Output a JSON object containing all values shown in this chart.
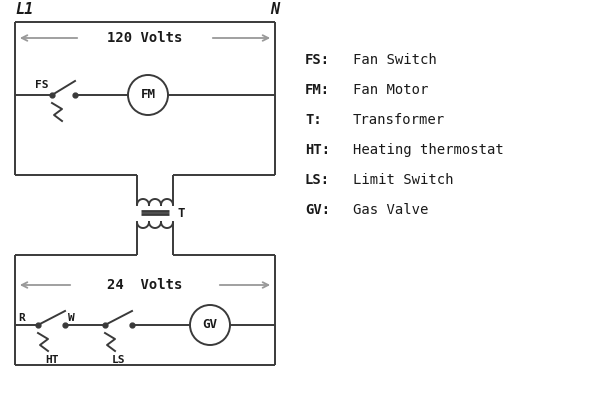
{
  "bg_color": "#ffffff",
  "line_color": "#3a3a3a",
  "gray_color": "#999999",
  "text_color": "#1a1a1a",
  "legend": {
    "FS": "Fan Switch",
    "FM": "Fan Motor",
    "T": "Transformer",
    "HT": "Heating thermostat",
    "LS": "Limit Switch",
    "GV": "Gas Valve"
  },
  "volts_120": "120 Volts",
  "volts_24": "24  Volts",
  "L1": "L1",
  "N": "N",
  "lw": 1.4
}
